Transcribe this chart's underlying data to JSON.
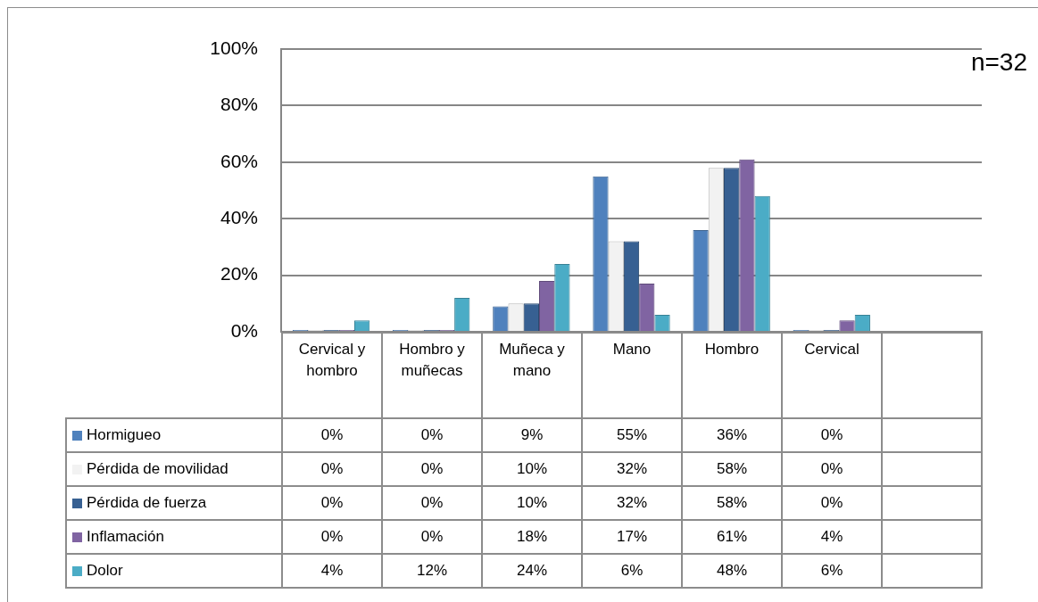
{
  "chart_data": {
    "type": "bar",
    "categories": [
      "Cervical y hombro",
      "Hombro y muñecas",
      "Muñeca y mano",
      "Mano",
      "Hombro",
      "Cervical",
      null
    ],
    "series": [
      {
        "name": "Hormigueo",
        "color": "#4f81bd",
        "values": [
          0,
          0,
          9,
          55,
          36,
          0,
          null
        ],
        "value_labels": [
          "0%",
          "0%",
          "9%",
          "55%",
          "36%",
          "0%",
          null
        ]
      },
      {
        "name": "Pérdida de movilidad",
        "color": "#f2f2f2",
        "values": [
          0,
          0,
          10,
          32,
          58,
          0,
          null
        ],
        "value_labels": [
          "0%",
          "0%",
          "10%",
          "32%",
          "58%",
          "0%",
          null
        ]
      },
      {
        "name": "Pérdida de fuerza",
        "color": "#376092",
        "values": [
          0,
          0,
          10,
          32,
          58,
          0,
          null
        ],
        "value_labels": [
          "0%",
          "0%",
          "10%",
          "32%",
          "58%",
          "0%",
          null
        ]
      },
      {
        "name": "Inflamación",
        "color": "#8064a2",
        "values": [
          0,
          0,
          18,
          17,
          61,
          4,
          null
        ],
        "value_labels": [
          "0%",
          "0%",
          "18%",
          "17%",
          "61%",
          "4%",
          null
        ]
      },
      {
        "name": "Dolor",
        "color": "#4bacc6",
        "values": [
          4,
          12,
          24,
          6,
          48,
          6,
          null
        ],
        "value_labels": [
          "4%",
          "12%",
          "24%",
          "6%",
          "48%",
          "6%",
          null
        ]
      }
    ],
    "ylim": [
      0,
      100
    ],
    "yticks": [
      {
        "value": 0,
        "label": "0%"
      },
      {
        "value": 20,
        "label": "20%"
      },
      {
        "value": 40,
        "label": "40%"
      },
      {
        "value": 60,
        "label": "60%"
      },
      {
        "value": 80,
        "label": "80%"
      },
      {
        "value": 100,
        "label": "100%"
      }
    ],
    "grid": "y",
    "legend": "bottom",
    "annotations": [
      "n=32"
    ]
  }
}
